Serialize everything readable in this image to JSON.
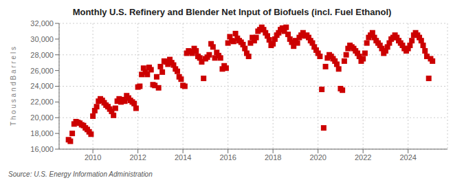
{
  "chart_data": {
    "type": "scatter",
    "title": "Monthly U.S. Refinery and Blender Net Input of Biofuels (incl. Fuel Ethanol)",
    "ylabel": "T h o u s a n d   B a r r e l s",
    "annotation": "Source: U.S. Energy Information Administration",
    "color": "#cc0000",
    "marker": "square",
    "grid": true,
    "xlim": [
      2008.5,
      2025.75
    ],
    "xticks": [
      2010,
      2012,
      2014,
      2016,
      2018,
      2020,
      2022,
      2024
    ],
    "ylim": [
      16000,
      32000
    ],
    "yticks": [
      {
        "value": 16000,
        "label": "16,000"
      },
      {
        "value": 18000,
        "label": "18,000"
      },
      {
        "value": 20000,
        "label": "20,000"
      },
      {
        "value": 22000,
        "label": "22,000"
      },
      {
        "value": 24000,
        "label": "24,000"
      },
      {
        "value": 26000,
        "label": "26,000"
      },
      {
        "value": 28000,
        "label": "28,000"
      },
      {
        "value": 30000,
        "label": "30,000"
      },
      {
        "value": 32000,
        "label": "32,000"
      }
    ],
    "x": [
      2008.917,
      2009.0,
      2009.083,
      2009.167,
      2009.25,
      2009.333,
      2009.417,
      2009.5,
      2009.583,
      2009.667,
      2009.75,
      2009.833,
      2009.917,
      2010.0,
      2010.083,
      2010.167,
      2010.25,
      2010.333,
      2010.417,
      2010.5,
      2010.583,
      2010.667,
      2010.75,
      2010.833,
      2010.917,
      2011.0,
      2011.083,
      2011.167,
      2011.25,
      2011.333,
      2011.417,
      2011.5,
      2011.583,
      2011.667,
      2011.75,
      2011.833,
      2011.917,
      2012.0,
      2012.083,
      2012.167,
      2012.25,
      2012.333,
      2012.417,
      2012.5,
      2012.583,
      2012.667,
      2012.75,
      2012.833,
      2012.917,
      2013.0,
      2013.083,
      2013.167,
      2013.25,
      2013.333,
      2013.417,
      2013.5,
      2013.583,
      2013.667,
      2013.75,
      2013.833,
      2013.917,
      2014.0,
      2014.083,
      2014.167,
      2014.25,
      2014.333,
      2014.417,
      2014.5,
      2014.583,
      2014.667,
      2014.75,
      2014.833,
      2014.917,
      2015.0,
      2015.083,
      2015.167,
      2015.25,
      2015.333,
      2015.417,
      2015.5,
      2015.583,
      2015.667,
      2015.75,
      2015.833,
      2015.917,
      2016.0,
      2016.083,
      2016.167,
      2016.25,
      2016.333,
      2016.417,
      2016.5,
      2016.583,
      2016.667,
      2016.75,
      2016.833,
      2016.917,
      2017.0,
      2017.083,
      2017.167,
      2017.25,
      2017.333,
      2017.417,
      2017.5,
      2017.583,
      2017.667,
      2017.75,
      2017.833,
      2017.917,
      2018.0,
      2018.083,
      2018.167,
      2018.25,
      2018.333,
      2018.417,
      2018.5,
      2018.583,
      2018.667,
      2018.75,
      2018.833,
      2018.917,
      2019.0,
      2019.083,
      2019.167,
      2019.25,
      2019.333,
      2019.417,
      2019.5,
      2019.583,
      2019.667,
      2019.75,
      2019.833,
      2019.917,
      2020.0,
      2020.083,
      2020.167,
      2020.25,
      2020.333,
      2020.417,
      2020.5,
      2020.583,
      2020.667,
      2020.75,
      2020.833,
      2020.917,
      2021.0,
      2021.083,
      2021.167,
      2021.25,
      2021.333,
      2021.417,
      2021.5,
      2021.583,
      2021.667,
      2021.75,
      2021.833,
      2021.917,
      2022.0,
      2022.083,
      2022.167,
      2022.25,
      2022.333,
      2022.417,
      2022.5,
      2022.583,
      2022.667,
      2022.75,
      2022.833,
      2022.917,
      2023.0,
      2023.083,
      2023.167,
      2023.25,
      2023.333,
      2023.417,
      2023.5,
      2023.583,
      2023.667,
      2023.75,
      2023.833,
      2023.917,
      2024.0,
      2024.083,
      2024.167,
      2024.25,
      2024.333,
      2024.417,
      2024.5,
      2024.583,
      2024.667,
      2024.75,
      2024.833,
      2024.917,
      2025.0,
      2025.083
    ],
    "values": [
      17200,
      17000,
      18000,
      19200,
      19500,
      19400,
      19300,
      19100,
      19000,
      18700,
      18500,
      18200,
      17900,
      20200,
      20900,
      21400,
      22100,
      22400,
      22200,
      21900,
      21600,
      21400,
      21100,
      20800,
      20300,
      21200,
      22100,
      22400,
      22000,
      22300,
      22100,
      22800,
      22500,
      22200,
      22000,
      21800,
      21200,
      23900,
      24000,
      25500,
      26300,
      25800,
      25500,
      26400,
      26100,
      24200,
      24100,
      25200,
      23800,
      26500,
      25800,
      27200,
      27100,
      26800,
      27400,
      27000,
      26700,
      26200,
      25900,
      25200,
      24900,
      24100,
      24000,
      28200,
      28500,
      28400,
      28200,
      28800,
      28500,
      27800,
      27600,
      27100,
      25000,
      27500,
      27700,
      28000,
      29400,
      29000,
      27600,
      28300,
      27900,
      27600,
      26200,
      26600,
      26300,
      29500,
      30300,
      29800,
      29700,
      30700,
      30100,
      29800,
      29600,
      29300,
      28800,
      28200,
      27800,
      29500,
      30200,
      29800,
      30200,
      31000,
      31200,
      31500,
      31200,
      30800,
      30400,
      29900,
      29200,
      29400,
      30000,
      30500,
      30800,
      31200,
      31400,
      31000,
      31500,
      30600,
      30000,
      29600,
      29100,
      29800,
      29500,
      30200,
      30500,
      30800,
      30400,
      30500,
      30200,
      29800,
      29500,
      29000,
      28600,
      28200,
      27800,
      23600,
      18700,
      26500,
      27600,
      28000,
      27800,
      27500,
      27200,
      26800,
      26200,
      23700,
      23500,
      27200,
      28000,
      28800,
      29200,
      29000,
      28800,
      28500,
      28200,
      27800,
      27200,
      27500,
      28200,
      29500,
      30200,
      30500,
      30800,
      30200,
      29800,
      29500,
      29200,
      28800,
      28200,
      28500,
      29000,
      29500,
      30000,
      30200,
      30500,
      30200,
      29800,
      29500,
      29200,
      28800,
      28500,
      28800,
      29200,
      29800,
      30500,
      30800,
      30500,
      30200,
      29800,
      29200,
      28500,
      27800,
      25000,
      27500,
      27200
    ]
  }
}
